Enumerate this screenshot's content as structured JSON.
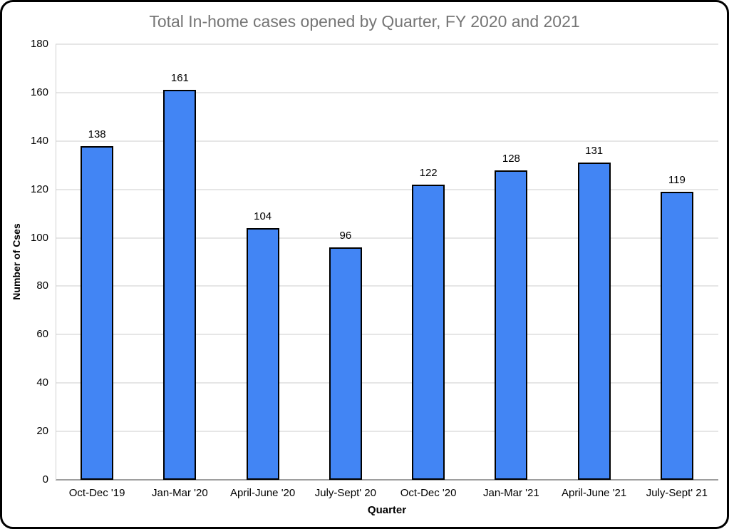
{
  "chart_data": {
    "type": "bar",
    "title": "Total In-home cases opened by Quarter, FY 2020 and 2021",
    "xlabel": "Quarter",
    "ylabel": "Number of Cses",
    "categories": [
      "Oct-Dec '19",
      "Jan-Mar '20",
      "April-June '20",
      "July-Sept' 20",
      "Oct-Dec '20",
      "Jan-Mar '21",
      "April-June '21",
      "July-Sept' 21"
    ],
    "values": [
      138,
      161,
      104,
      96,
      122,
      128,
      131,
      119
    ],
    "ylim": [
      0,
      180
    ],
    "yticks": [
      0,
      20,
      40,
      60,
      80,
      100,
      120,
      140,
      160,
      180
    ],
    "grid": true,
    "legend": "none",
    "data_labels_shown": true,
    "colors": {
      "bar_fill": "#4285F4",
      "bar_border": "#000000",
      "gridline": "#e6e6e6",
      "axis_line": "#9e9e9e",
      "title_text": "#757575",
      "label_text": "#000000",
      "frame_border": "#000000",
      "background": "#ffffff"
    }
  }
}
